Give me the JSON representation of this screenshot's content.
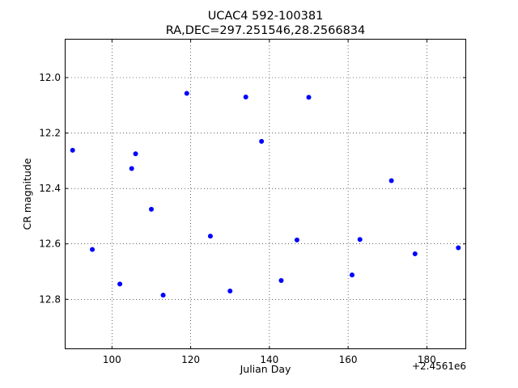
{
  "chart_data": {
    "type": "scatter",
    "title": "UCAC4 592-100381",
    "subtitle": "RA,DEC=297.251546,28.2566834",
    "xlabel": "Julian Day",
    "ylabel": "CR magnitude",
    "x_offset_label": "+2.4561e6",
    "xlim": [
      88,
      190
    ],
    "ylim": [
      12.98,
      11.86
    ],
    "y_inverted": true,
    "grid": true,
    "marker_color": "#0000ff",
    "x_ticks": [
      100,
      120,
      140,
      160,
      180
    ],
    "y_ticks": [
      12.0,
      12.2,
      12.4,
      12.6,
      12.8
    ],
    "x_tick_labels": [
      "100",
      "120",
      "140",
      "160",
      "180"
    ],
    "y_tick_labels": [
      "12.0",
      "12.2",
      "12.4",
      "12.6",
      "12.8"
    ],
    "series": [
      {
        "points": [
          {
            "x": 90.0,
            "y": 12.262
          },
          {
            "x": 95.0,
            "y": 12.62
          },
          {
            "x": 102.0,
            "y": 12.745
          },
          {
            "x": 105.0,
            "y": 12.328
          },
          {
            "x": 106.0,
            "y": 12.275
          },
          {
            "x": 110.0,
            "y": 12.475
          },
          {
            "x": 113.0,
            "y": 12.785
          },
          {
            "x": 119.0,
            "y": 12.057
          },
          {
            "x": 125.0,
            "y": 12.572
          },
          {
            "x": 130.0,
            "y": 12.77
          },
          {
            "x": 134.0,
            "y": 12.07
          },
          {
            "x": 138.0,
            "y": 12.23
          },
          {
            "x": 143.0,
            "y": 12.732
          },
          {
            "x": 147.0,
            "y": 12.586
          },
          {
            "x": 150.0,
            "y": 12.071
          },
          {
            "x": 161.0,
            "y": 12.712
          },
          {
            "x": 163.0,
            "y": 12.584
          },
          {
            "x": 171.0,
            "y": 12.372
          },
          {
            "x": 177.0,
            "y": 12.636
          },
          {
            "x": 188.0,
            "y": 12.614
          }
        ]
      }
    ]
  }
}
